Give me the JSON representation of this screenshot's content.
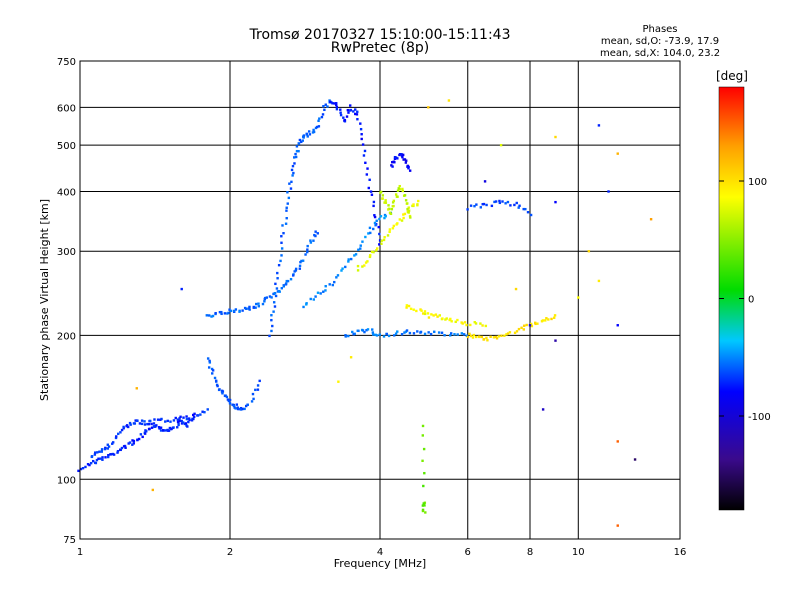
{
  "chart_data": {
    "type": "scatter",
    "title": "Tromsø 20170327 15:10:00-15:11:43",
    "subtitle": "RwPretec (8p)",
    "xlabel": "Frequency [MHz]",
    "ylabel": "Stationary phase Virtual Height [km]",
    "x_scale": "log",
    "y_scale": "log",
    "xlim": [
      1,
      16
    ],
    "ylim": [
      75,
      750
    ],
    "x_ticks": [
      1,
      2,
      4,
      6,
      8,
      10,
      16
    ],
    "x_tick_labels": [
      "1",
      "2",
      "4",
      "6",
      "8",
      "10",
      "16"
    ],
    "y_ticks": [
      75,
      100,
      200,
      300,
      400,
      500,
      600,
      750
    ],
    "y_tick_labels": [
      "75",
      "100",
      "200",
      "300",
      "400",
      "500",
      "600",
      "750"
    ],
    "grid": true,
    "colorbar": {
      "label": "[deg]",
      "range": [
        -180,
        180
      ],
      "ticks": [
        100,
        0,
        -100
      ],
      "tick_labels": [
        "100",
        "0",
        "-100"
      ]
    },
    "stats": {
      "heading": "Phases",
      "line1": "mean, sd,O: -73.9, 17.9",
      "line2": "mean, sd,X: 104.0, 23.2"
    },
    "traces": [
      {
        "color_value": -90,
        "points": [
          [
            1.0,
            105
          ],
          [
            1.05,
            108
          ],
          [
            1.1,
            110
          ],
          [
            1.15,
            112
          ],
          [
            1.2,
            115
          ],
          [
            1.25,
            118
          ],
          [
            1.3,
            121
          ],
          [
            1.35,
            125
          ],
          [
            1.4,
            130
          ],
          [
            1.45,
            128
          ],
          [
            1.5,
            126
          ],
          [
            1.55,
            129
          ],
          [
            1.6,
            132
          ],
          [
            1.65,
            130
          ],
          [
            1.7,
            136
          ]
        ]
      },
      {
        "color_value": -85,
        "points": [
          [
            1.05,
            112
          ],
          [
            1.1,
            115
          ],
          [
            1.15,
            118
          ],
          [
            1.2,
            125
          ],
          [
            1.25,
            130
          ],
          [
            1.3,
            132
          ],
          [
            1.35,
            131
          ],
          [
            1.4,
            132
          ],
          [
            1.5,
            133
          ],
          [
            1.6,
            134
          ],
          [
            1.7,
            135
          ],
          [
            1.8,
            140
          ]
        ]
      },
      {
        "color_value": -75,
        "points": [
          [
            1.8,
            180
          ],
          [
            1.85,
            165
          ],
          [
            1.9,
            155
          ],
          [
            1.95,
            150
          ],
          [
            2.0,
            145
          ],
          [
            2.05,
            142
          ],
          [
            2.1,
            140
          ],
          [
            2.2,
            145
          ],
          [
            2.3,
            160
          ]
        ]
      },
      {
        "color_value": -70,
        "points": [
          [
            1.8,
            220
          ],
          [
            1.9,
            222
          ],
          [
            2.0,
            225
          ],
          [
            2.1,
            226
          ],
          [
            2.2,
            228
          ],
          [
            2.3,
            232
          ],
          [
            2.4,
            240
          ],
          [
            2.5,
            248
          ],
          [
            2.6,
            258
          ],
          [
            2.7,
            270
          ],
          [
            2.8,
            285
          ],
          [
            2.9,
            310
          ],
          [
            3.0,
            330
          ]
        ]
      },
      {
        "color_value": -72,
        "points": [
          [
            2.4,
            200
          ],
          [
            2.45,
            230
          ],
          [
            2.5,
            270
          ],
          [
            2.55,
            320
          ],
          [
            2.6,
            370
          ],
          [
            2.65,
            420
          ],
          [
            2.7,
            470
          ],
          [
            2.75,
            500
          ],
          [
            2.8,
            520
          ],
          [
            2.9,
            530
          ],
          [
            3.0,
            550
          ],
          [
            3.1,
            600
          ],
          [
            3.2,
            620
          ]
        ]
      },
      {
        "color_value": -95,
        "points": [
          [
            3.2,
            620
          ],
          [
            3.3,
            600
          ],
          [
            3.4,
            560
          ],
          [
            3.5,
            600
          ],
          [
            3.6,
            580
          ],
          [
            3.7,
            500
          ],
          [
            3.8,
            420
          ],
          [
            3.9,
            360
          ],
          [
            4.0,
            310
          ]
        ]
      },
      {
        "color_value": -60,
        "points": [
          [
            2.8,
            230
          ],
          [
            3.0,
            245
          ],
          [
            3.2,
            255
          ],
          [
            3.4,
            280
          ],
          [
            3.6,
            300
          ],
          [
            3.8,
            330
          ],
          [
            4.0,
            350
          ],
          [
            4.2,
            360
          ]
        ]
      },
      {
        "color_value": -65,
        "points": [
          [
            3.4,
            200
          ],
          [
            3.6,
            203
          ],
          [
            3.8,
            205
          ],
          [
            4.0,
            200
          ],
          [
            4.3,
            202
          ],
          [
            4.6,
            203
          ],
          [
            5.0,
            202
          ],
          [
            5.5,
            201
          ],
          [
            6.0,
            200
          ]
        ]
      },
      {
        "color_value": 75,
        "points": [
          [
            3.6,
            275
          ],
          [
            3.8,
            290
          ],
          [
            4.0,
            310
          ],
          [
            4.2,
            330
          ],
          [
            4.4,
            350
          ],
          [
            4.6,
            370
          ],
          [
            4.8,
            380
          ]
        ]
      },
      {
        "color_value": 60,
        "points": [
          [
            4.0,
            400
          ],
          [
            4.1,
            380
          ],
          [
            4.2,
            360
          ],
          [
            4.3,
            390
          ],
          [
            4.4,
            410
          ],
          [
            4.5,
            380
          ],
          [
            4.6,
            350
          ]
        ]
      },
      {
        "color_value": 80,
        "points": [
          [
            4.5,
            230
          ],
          [
            4.8,
            225
          ],
          [
            5.0,
            220
          ],
          [
            5.3,
            218
          ],
          [
            5.6,
            215
          ],
          [
            6.0,
            212
          ],
          [
            6.5,
            210
          ]
        ]
      },
      {
        "color_value": 95,
        "points": [
          [
            6.0,
            200
          ],
          [
            6.3,
            198
          ],
          [
            6.6,
            197
          ],
          [
            7.0,
            200
          ],
          [
            7.5,
            205
          ],
          [
            8.0,
            210
          ],
          [
            8.5,
            215
          ],
          [
            9.0,
            220
          ]
        ]
      },
      {
        "color_value": -100,
        "points": [
          [
            4.2,
            450
          ],
          [
            4.3,
            470
          ],
          [
            4.4,
            480
          ],
          [
            4.5,
            460
          ],
          [
            4.6,
            440
          ]
        ]
      },
      {
        "color_value": -80,
        "points": [
          [
            6.0,
            370
          ],
          [
            6.5,
            375
          ],
          [
            7.0,
            380
          ],
          [
            7.5,
            375
          ],
          [
            8.0,
            360
          ]
        ]
      },
      {
        "color_value": 30,
        "points": [
          [
            4.9,
            130
          ],
          [
            4.9,
            90
          ],
          [
            4.9,
            85
          ]
        ]
      }
    ],
    "scatter": [
      {
        "x": 3.3,
        "y": 160,
        "c": 85
      },
      {
        "x": 3.5,
        "y": 180,
        "c": 90
      },
      {
        "x": 5.0,
        "y": 600,
        "c": 110
      },
      {
        "x": 5.5,
        "y": 620,
        "c": 95
      },
      {
        "x": 7.0,
        "y": 500,
        "c": 70
      },
      {
        "x": 9.0,
        "y": 520,
        "c": 100
      },
      {
        "x": 11.0,
        "y": 550,
        "c": -90
      },
      {
        "x": 12.0,
        "y": 480,
        "c": 120
      },
      {
        "x": 12.0,
        "y": 120,
        "c": 150
      },
      {
        "x": 12.0,
        "y": 80,
        "c": 150
      },
      {
        "x": 13.0,
        "y": 110,
        "c": -150
      },
      {
        "x": 14.0,
        "y": 350,
        "c": 130
      },
      {
        "x": 8.0,
        "y": 210,
        "c": -120
      },
      {
        "x": 9.0,
        "y": 195,
        "c": -130
      },
      {
        "x": 10.0,
        "y": 240,
        "c": 80
      },
      {
        "x": 11.0,
        "y": 260,
        "c": 90
      },
      {
        "x": 12.0,
        "y": 210,
        "c": -100
      },
      {
        "x": 7.5,
        "y": 250,
        "c": 100
      },
      {
        "x": 1.6,
        "y": 250,
        "c": -90
      },
      {
        "x": 1.3,
        "y": 155,
        "c": 120
      },
      {
        "x": 1.4,
        "y": 95,
        "c": 120
      },
      {
        "x": 8.5,
        "y": 140,
        "c": -120
      },
      {
        "x": 9.0,
        "y": 380,
        "c": -100
      },
      {
        "x": 10.5,
        "y": 300,
        "c": 100
      },
      {
        "x": 11.5,
        "y": 400,
        "c": -90
      },
      {
        "x": 6.5,
        "y": 420,
        "c": -110
      }
    ]
  }
}
